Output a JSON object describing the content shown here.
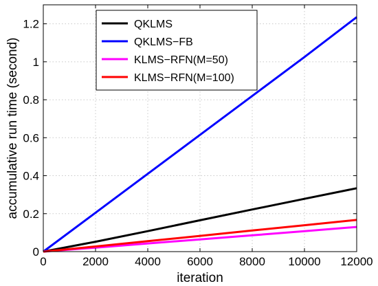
{
  "chart_data": {
    "type": "line",
    "title": "",
    "xlabel": "iteration",
    "ylabel": "accumulative run time (second)",
    "xlim": [
      0,
      12000
    ],
    "ylim": [
      0,
      1.3
    ],
    "x_ticks": [
      0,
      2000,
      4000,
      6000,
      8000,
      10000,
      12000
    ],
    "x_tick_labels": [
      "0",
      "2000",
      "4000",
      "6000",
      "8000",
      "10000",
      "12000"
    ],
    "y_ticks": [
      0,
      0.2,
      0.4,
      0.6,
      0.8,
      1.0,
      1.2
    ],
    "y_tick_labels": [
      "0",
      "0.2",
      "0.4",
      "0.6",
      "0.8",
      "1",
      "1.2"
    ],
    "grid": true,
    "legend_position": "top-center",
    "series": [
      {
        "name": "QKLMS",
        "color": "#000000",
        "x": [
          0,
          2000,
          4000,
          6000,
          8000,
          10000,
          12000
        ],
        "y": [
          0,
          0.052,
          0.108,
          0.165,
          0.222,
          0.278,
          0.334
        ]
      },
      {
        "name": "QKLMS−FB",
        "color": "#0000ff",
        "x": [
          0,
          2000,
          4000,
          6000,
          8000,
          10000,
          12000
        ],
        "y": [
          0,
          0.205,
          0.41,
          0.615,
          0.82,
          1.025,
          1.235
        ]
      },
      {
        "name": "KLMS−RFN(M=50)",
        "color": "#ff00ff",
        "x": [
          0,
          2000,
          4000,
          6000,
          8000,
          10000,
          12000
        ],
        "y": [
          0,
          0.021,
          0.043,
          0.064,
          0.086,
          0.108,
          0.13
        ]
      },
      {
        "name": "KLMS−RFN(M=100)",
        "color": "#ff0000",
        "x": [
          0,
          2000,
          4000,
          6000,
          8000,
          10000,
          12000
        ],
        "y": [
          0,
          0.027,
          0.055,
          0.083,
          0.111,
          0.139,
          0.167
        ]
      }
    ]
  }
}
